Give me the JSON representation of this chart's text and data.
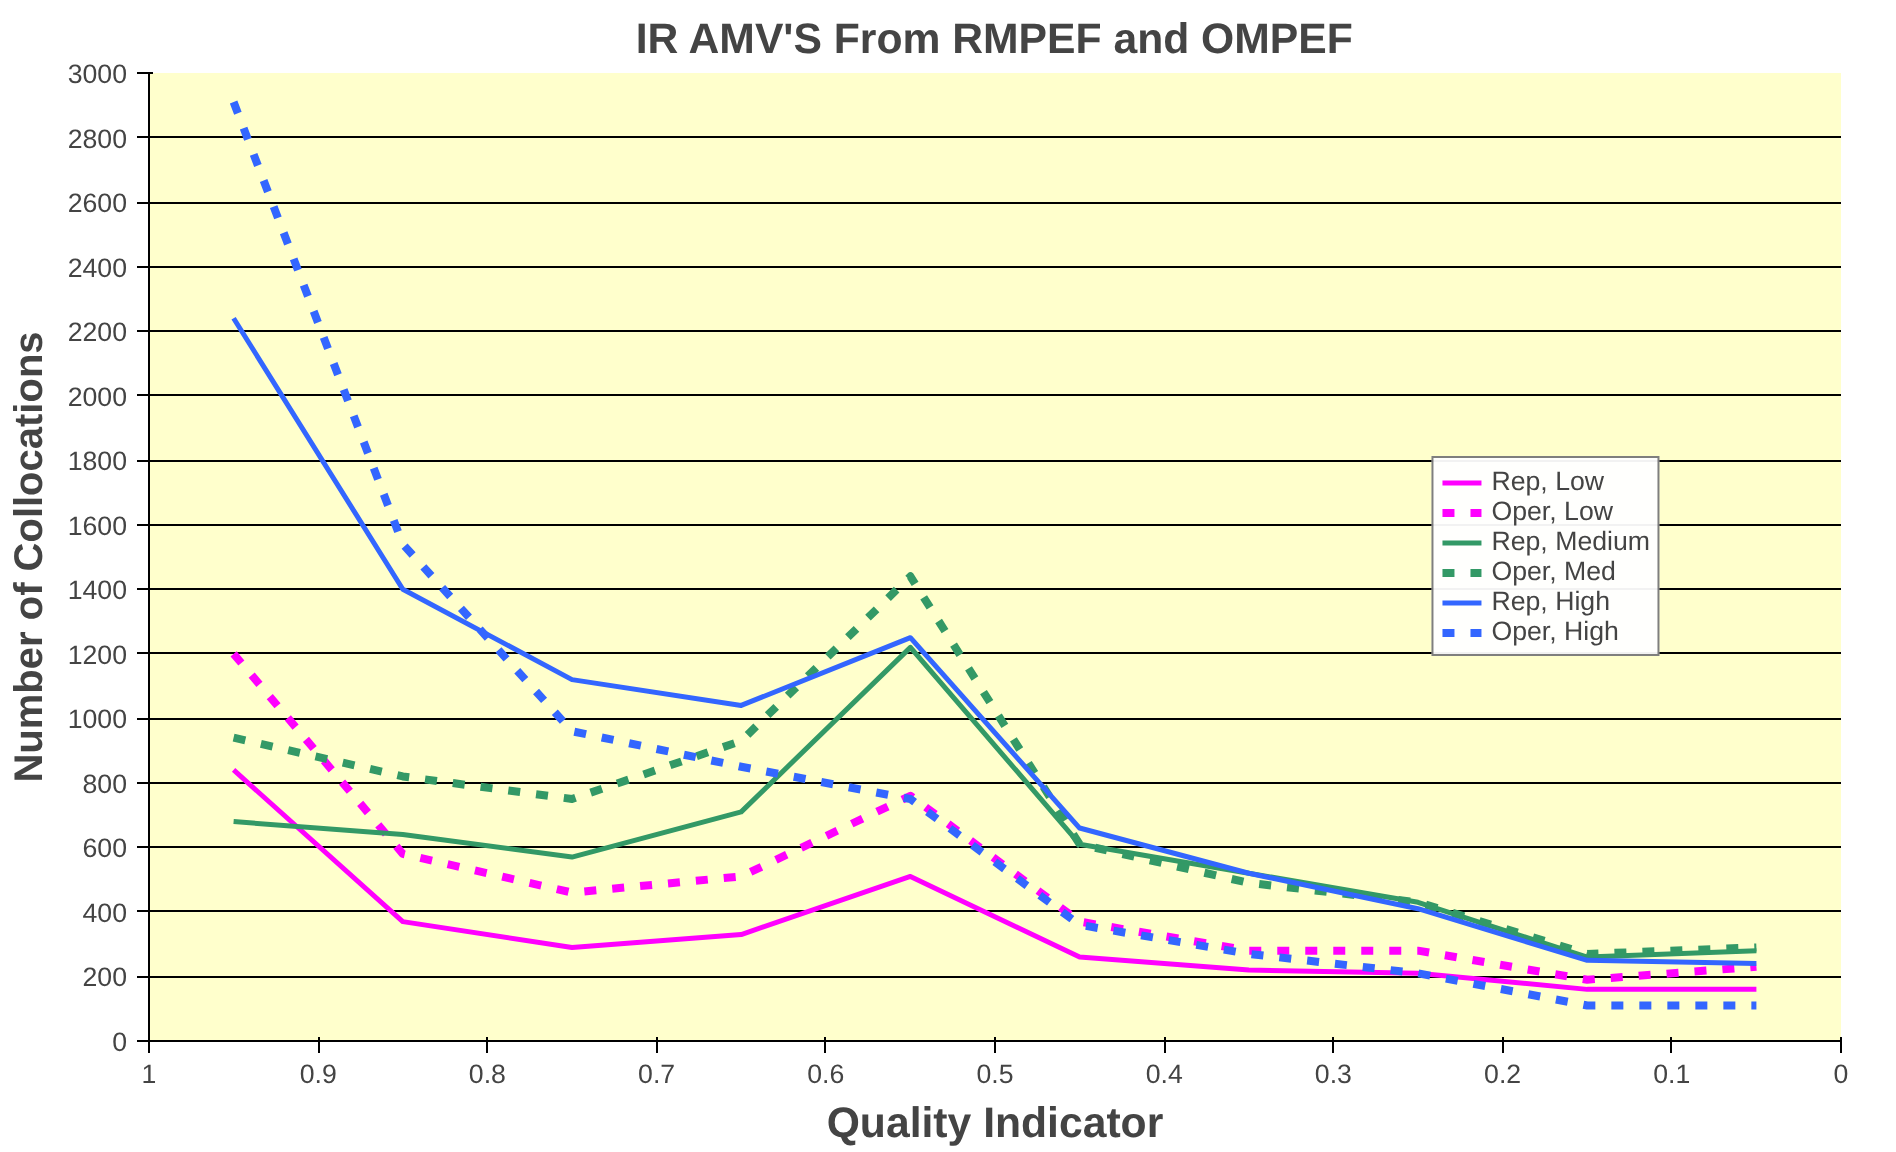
{
  "chart_data": {
    "type": "line",
    "title": "IR AMV'S From RMPEF and OMPEF",
    "xlabel": "Quality Indicator",
    "ylabel": "Number of Collocations",
    "x": [
      0.95,
      0.85,
      0.75,
      0.65,
      0.55,
      0.45,
      0.35,
      0.25,
      0.15,
      0.05
    ],
    "xlim": [
      1,
      0
    ],
    "xticks": [
      1,
      0.9,
      0.8,
      0.7,
      0.6,
      0.5,
      0.4,
      0.3,
      0.2,
      0.1,
      0
    ],
    "ylim": [
      0,
      3000
    ],
    "yticks": [
      0,
      200,
      400,
      600,
      800,
      1000,
      1200,
      1400,
      1600,
      1800,
      2000,
      2200,
      2400,
      2600,
      2800,
      3000
    ],
    "grid": "y",
    "legend": "right",
    "marker": "none",
    "series": [
      {
        "name": "Rep, Low",
        "color": "#ff00ff",
        "line_style": "solid",
        "values": [
          840,
          370,
          290,
          330,
          510,
          260,
          220,
          210,
          160,
          160
        ]
      },
      {
        "name": "Oper, Low",
        "color": "#ff00ff",
        "line_style": "dashed",
        "values": [
          1200,
          580,
          460,
          510,
          760,
          370,
          280,
          280,
          190,
          230
        ]
      },
      {
        "name": "Rep, Medium",
        "color": "#339966",
        "line_style": "solid",
        "values": [
          680,
          640,
          570,
          710,
          1220,
          610,
          520,
          430,
          260,
          280
        ]
      },
      {
        "name": "Oper, Med",
        "color": "#339966",
        "line_style": "dashed",
        "values": [
          940,
          820,
          750,
          930,
          1440,
          610,
          490,
          430,
          270,
          290
        ]
      },
      {
        "name": "Rep, High",
        "color": "#3366ff",
        "line_style": "solid",
        "values": [
          2240,
          1400,
          1120,
          1040,
          1250,
          660,
          520,
          410,
          250,
          240
        ]
      },
      {
        "name": "Oper, High",
        "color": "#3366ff",
        "line_style": "dashed",
        "values": [
          2910,
          1540,
          960,
          850,
          750,
          360,
          270,
          210,
          110,
          110
        ]
      }
    ]
  }
}
